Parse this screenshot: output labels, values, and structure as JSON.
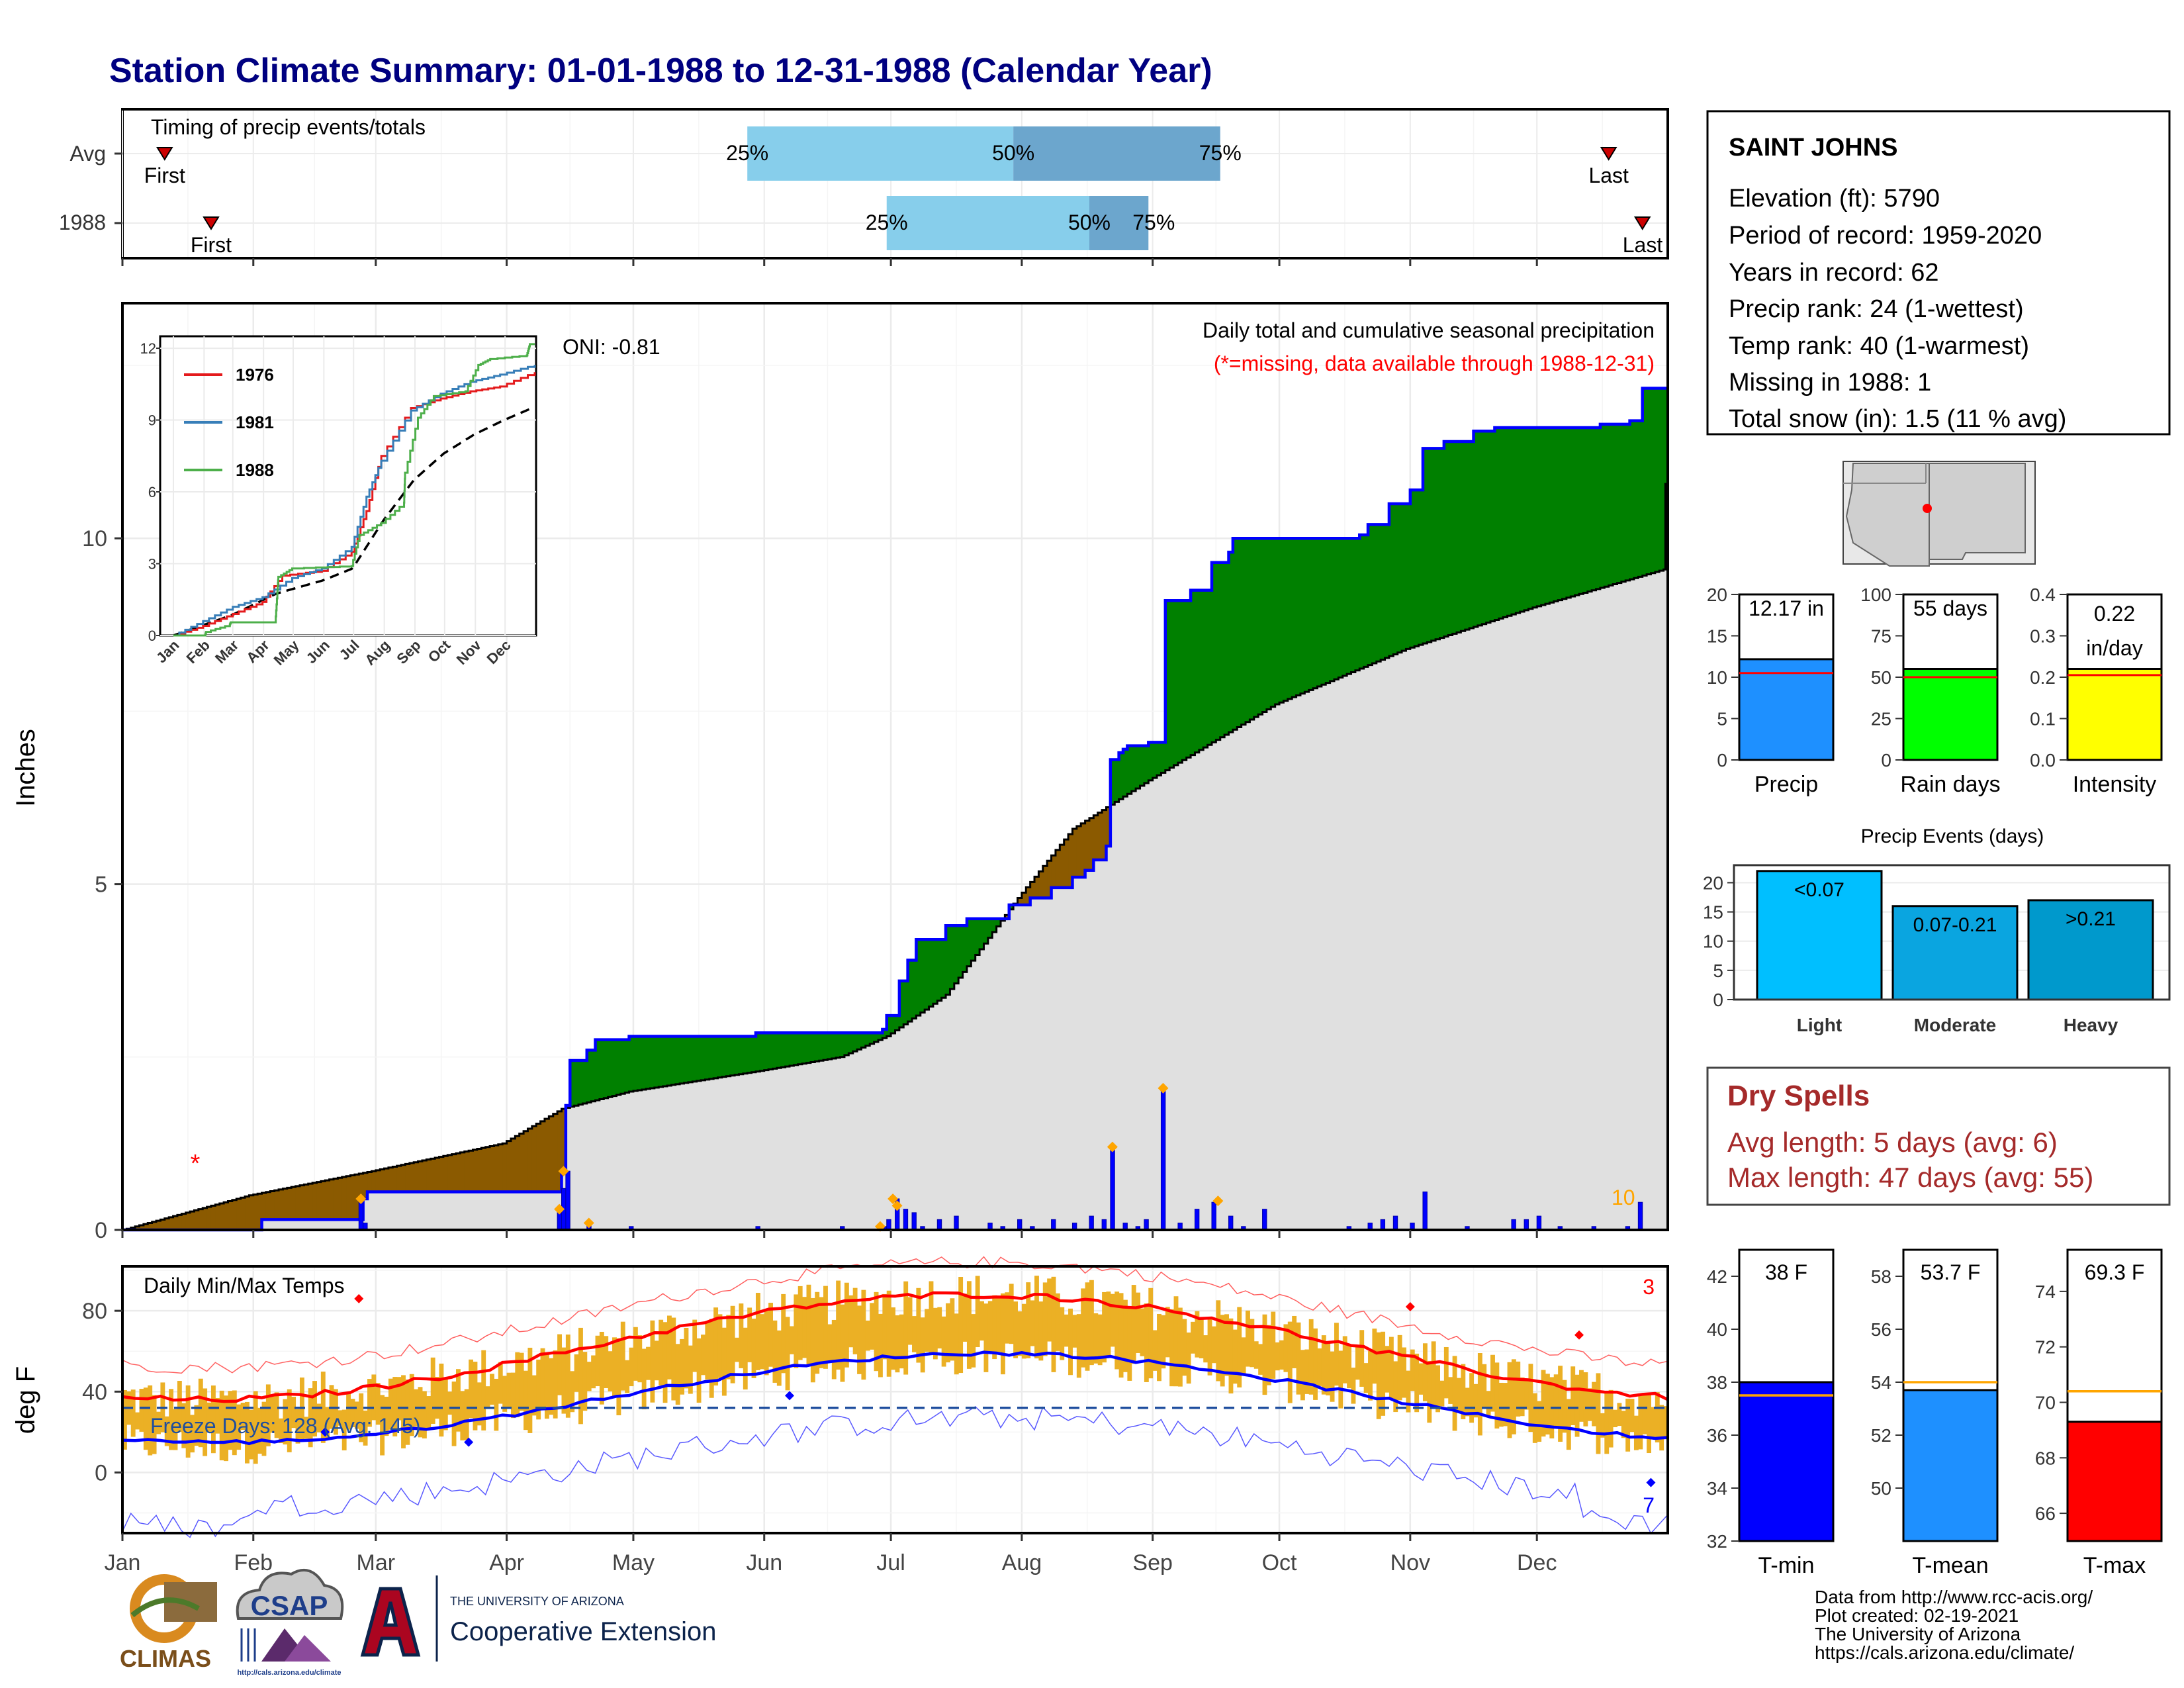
{
  "title": "Station Climate Summary: 01-01-1988 to 12-31-1988 (Calendar Year)",
  "colors": {
    "title": "#000080",
    "precip_green": "#008000",
    "precip_brown": "#8B5A00",
    "cum_gray": "#E0E0E0",
    "daily_bar": "#0000FF",
    "orange": "#FFA500",
    "tmax_red": "#FF0000",
    "tmin_blue": "#0000FF",
    "temp_bar": "#EBB025",
    "dry_spell": "#A52A2A",
    "light_blue": "#87CEEB",
    "mid_blue": "#6CA6CD"
  },
  "timing_chart": {
    "title": "Timing of precip events/totals",
    "rows": [
      {
        "label": "Avg",
        "first_label": "First",
        "last_label": "Last",
        "first_doy": 10,
        "p25_doy": 148,
        "p50_doy": 211,
        "p75_doy": 260,
        "last_doy": 352,
        "p25_label": "25%",
        "p50_label": "50%",
        "p75_label": "75%"
      },
      {
        "label": "1988",
        "first_label": "First",
        "last_label": "Last",
        "first_doy": 21,
        "p25_doy": 181,
        "p50_doy": 229,
        "p75_doy": 243,
        "last_doy": 360,
        "p25_label": "25%",
        "p50_label": "50%",
        "p75_label": "75%"
      }
    ]
  },
  "precip_chart": {
    "ylabel": "Inches",
    "title": "Daily total and cumulative seasonal precipitation",
    "missing_note": "(*=missing, data available through 1988-12-31)",
    "oni_label": "ONI: -0.81",
    "max_daily_count": "10",
    "y_ticks": [
      0,
      5,
      10
    ],
    "ylim": [
      0,
      13.4
    ],
    "months": [
      "Jan",
      "Feb",
      "Mar",
      "Apr",
      "May",
      "Jun",
      "Jul",
      "Aug",
      "Sep",
      "Oct",
      "Nov",
      "Dec"
    ],
    "cumulative_1988": [
      [
        0,
        0
      ],
      [
        32,
        0
      ],
      [
        33,
        0.15
      ],
      [
        55,
        0.15
      ],
      [
        56,
        0.15
      ],
      [
        57,
        0.45
      ],
      [
        58,
        0.55
      ],
      [
        103,
        0.55
      ],
      [
        104,
        0.85
      ],
      [
        105,
        1.8
      ],
      [
        106,
        2.45
      ],
      [
        110,
        2.6
      ],
      [
        112,
        2.75
      ],
      [
        120,
        2.8
      ],
      [
        150,
        2.85
      ],
      [
        180,
        2.9
      ],
      [
        181,
        3.1
      ],
      [
        184,
        3.6
      ],
      [
        186,
        3.9
      ],
      [
        188,
        4.2
      ],
      [
        195,
        4.4
      ],
      [
        200,
        4.5
      ],
      [
        210,
        4.7
      ],
      [
        215,
        4.8
      ],
      [
        220,
        4.95
      ],
      [
        225,
        5.1
      ],
      [
        228,
        5.2
      ],
      [
        230,
        5.35
      ],
      [
        233,
        5.55
      ],
      [
        234,
        6.8
      ],
      [
        236,
        6.9
      ],
      [
        237,
        6.95
      ],
      [
        238,
        7.0
      ],
      [
        243,
        7.05
      ],
      [
        247,
        9.1
      ],
      [
        253,
        9.25
      ],
      [
        258,
        9.65
      ],
      [
        262,
        9.8
      ],
      [
        263,
        10.0
      ],
      [
        293,
        10.05
      ],
      [
        295,
        10.2
      ],
      [
        300,
        10.5
      ],
      [
        305,
        10.7
      ],
      [
        308,
        11.3
      ],
      [
        313,
        11.4
      ],
      [
        320,
        11.55
      ],
      [
        325,
        11.6
      ],
      [
        350,
        11.65
      ],
      [
        357,
        11.7
      ],
      [
        360,
        12.17
      ],
      [
        365,
        12.17
      ]
    ],
    "cumulative_avg": [
      [
        0,
        0
      ],
      [
        30,
        0.5
      ],
      [
        59,
        0.85
      ],
      [
        90,
        1.25
      ],
      [
        104,
        1.75
      ],
      [
        120,
        2.0
      ],
      [
        151,
        2.3
      ],
      [
        170,
        2.5
      ],
      [
        181,
        2.8
      ],
      [
        195,
        3.4
      ],
      [
        212,
        4.8
      ],
      [
        225,
        5.8
      ],
      [
        243,
        6.5
      ],
      [
        273,
        7.6
      ],
      [
        304,
        8.4
      ],
      [
        334,
        9.0
      ],
      [
        365,
        9.55
      ]
    ],
    "daily_bars": [
      [
        56,
        0.45
      ],
      [
        57,
        0.1
      ],
      [
        103,
        0.3
      ],
      [
        104,
        0.6
      ],
      [
        105,
        0.85
      ],
      [
        110,
        0.1
      ],
      [
        120,
        0.05
      ],
      [
        150,
        0.05
      ],
      [
        170,
        0.05
      ],
      [
        180,
        0.05
      ],
      [
        181,
        0.15
      ],
      [
        183,
        0.45
      ],
      [
        185,
        0.3
      ],
      [
        187,
        0.25
      ],
      [
        189,
        0.05
      ],
      [
        193,
        0.15
      ],
      [
        197,
        0.2
      ],
      [
        205,
        0.1
      ],
      [
        208,
        0.05
      ],
      [
        212,
        0.15
      ],
      [
        215,
        0.05
      ],
      [
        220,
        0.15
      ],
      [
        225,
        0.1
      ],
      [
        229,
        0.2
      ],
      [
        232,
        0.15
      ],
      [
        234,
        1.2
      ],
      [
        237,
        0.1
      ],
      [
        240,
        0.05
      ],
      [
        242,
        0.15
      ],
      [
        246,
        2.05
      ],
      [
        250,
        0.1
      ],
      [
        254,
        0.3
      ],
      [
        258,
        0.4
      ],
      [
        262,
        0.2
      ],
      [
        265,
        0.05
      ],
      [
        270,
        0.3
      ],
      [
        290,
        0.05
      ],
      [
        295,
        0.1
      ],
      [
        298,
        0.15
      ],
      [
        301,
        0.2
      ],
      [
        305,
        0.1
      ],
      [
        308,
        0.55
      ],
      [
        318,
        0.05
      ],
      [
        329,
        0.15
      ],
      [
        332,
        0.15
      ],
      [
        335,
        0.2
      ],
      [
        340,
        0.05
      ],
      [
        348,
        0.05
      ],
      [
        356,
        0.05
      ],
      [
        359,
        0.4
      ]
    ],
    "orange_markers": [
      [
        56,
        0.45
      ],
      [
        103,
        0.3
      ],
      [
        104,
        0.85
      ],
      [
        110,
        0.1
      ],
      [
        179,
        0.05
      ],
      [
        182,
        0.45
      ],
      [
        183,
        0.35
      ],
      [
        234,
        1.2
      ],
      [
        246,
        2.05
      ],
      [
        259,
        0.42
      ]
    ],
    "missing_doy": 17,
    "missing_value": 1.0,
    "legend_area_label": ""
  },
  "inset_chart": {
    "y_ticks": [
      "0",
      "3",
      "6",
      "9",
      "12"
    ],
    "months": [
      "Jan",
      "Feb",
      "Mar",
      "Apr",
      "May",
      "Jun",
      "Jul",
      "Aug",
      "Sep",
      "Oct",
      "Nov",
      "Dec"
    ],
    "ylim": [
      0,
      12.5
    ],
    "series": [
      {
        "name": "1976",
        "color": "#E41A1C",
        "points": [
          [
            0,
            0
          ],
          [
            30,
            0.4
          ],
          [
            60,
            0.9
          ],
          [
            90,
            1.4
          ],
          [
            110,
            2.5
          ],
          [
            150,
            2.7
          ],
          [
            180,
            3.5
          ],
          [
            195,
            5.2
          ],
          [
            210,
            7.5
          ],
          [
            240,
            9.5
          ],
          [
            270,
            9.9
          ],
          [
            300,
            10.2
          ],
          [
            330,
            10.4
          ],
          [
            365,
            11.0
          ]
        ]
      },
      {
        "name": "1981",
        "color": "#377EB8",
        "points": [
          [
            0,
            0
          ],
          [
            30,
            0.6
          ],
          [
            60,
            1.2
          ],
          [
            90,
            1.6
          ],
          [
            120,
            2.4
          ],
          [
            150,
            2.8
          ],
          [
            180,
            3.7
          ],
          [
            195,
            5.8
          ],
          [
            210,
            7.3
          ],
          [
            240,
            9.4
          ],
          [
            270,
            10.1
          ],
          [
            300,
            10.6
          ],
          [
            330,
            10.9
          ],
          [
            365,
            11.3
          ]
        ]
      },
      {
        "name": "1988",
        "color": "#4DAF4A",
        "points": [
          [
            0,
            0
          ],
          [
            32,
            0
          ],
          [
            33,
            0.15
          ],
          [
            57,
            0.45
          ],
          [
            58,
            0.55
          ],
          [
            103,
            0.55
          ],
          [
            105,
            1.8
          ],
          [
            106,
            2.45
          ],
          [
            120,
            2.8
          ],
          [
            180,
            2.9
          ],
          [
            188,
            4.2
          ],
          [
            210,
            4.7
          ],
          [
            233,
            5.55
          ],
          [
            234,
            6.8
          ],
          [
            247,
            9.1
          ],
          [
            263,
            10.0
          ],
          [
            295,
            10.2
          ],
          [
            308,
            11.3
          ],
          [
            320,
            11.55
          ],
          [
            357,
            11.7
          ],
          [
            360,
            12.17
          ],
          [
            365,
            12.17
          ]
        ]
      }
    ],
    "avg_points": [
      [
        0,
        0
      ],
      [
        59,
        0.85
      ],
      [
        104,
        1.75
      ],
      [
        151,
        2.3
      ],
      [
        181,
        2.8
      ],
      [
        212,
        4.8
      ],
      [
        243,
        6.5
      ],
      [
        273,
        7.6
      ],
      [
        304,
        8.4
      ],
      [
        334,
        9.0
      ],
      [
        365,
        9.55
      ]
    ]
  },
  "temp_chart": {
    "ylabel": "deg F",
    "title": "Daily Min/Max Temps",
    "freeze_label": "Freeze Days: 128 (Avg: 145)",
    "record_high_count": "3",
    "record_low_count": "7",
    "y_ticks": [
      0,
      40,
      80
    ],
    "ylim": [
      -30,
      102
    ],
    "months": [
      "Jan",
      "Feb",
      "Mar",
      "Apr",
      "May",
      "Jun",
      "Jul",
      "Aug",
      "Sep",
      "Oct",
      "Nov",
      "Dec"
    ]
  },
  "station_info": {
    "name": "SAINT JOHNS",
    "lines": [
      "Elevation (ft): 5790",
      "Period of record: 1959-2020",
      "Years in record: 62",
      "Precip rank: 24 (1-wettest)",
      "Temp rank: 40 (1-warmest)",
      "Missing in 1988: 1",
      "Total snow (in): 1.5 (11 % avg)"
    ]
  },
  "summary_bars": [
    {
      "name": "Precip",
      "label": "12.17 in",
      "label2": "",
      "value": 12.17,
      "avg": 10.5,
      "ylim": [
        0,
        20
      ],
      "ticks": [
        "0",
        "5",
        "10",
        "15",
        "20"
      ],
      "color": "#1E90FF"
    },
    {
      "name": "Rain days",
      "label": "55 days",
      "label2": "",
      "value": 55,
      "avg": 50,
      "ylim": [
        0,
        100
      ],
      "ticks": [
        "0",
        "25",
        "50",
        "75",
        "100"
      ],
      "color": "#00FF00"
    },
    {
      "name": "Intensity",
      "label": "0.22",
      "label2": "in/day",
      "value": 0.22,
      "avg": 0.205,
      "ylim": [
        0,
        0.4
      ],
      "ticks": [
        "0.0",
        "0.1",
        "0.2",
        "0.3",
        "0.4"
      ],
      "color": "#FFFF00"
    }
  ],
  "precip_events": {
    "title": "Precip Events (days)",
    "ylim": [
      0,
      23
    ],
    "ticks": [
      "0",
      "5",
      "10",
      "15",
      "20"
    ],
    "bars": [
      {
        "name": "Light",
        "label": "<0.07",
        "value": 22,
        "color": "#00BFFF"
      },
      {
        "name": "Moderate",
        "label": "0.07-0.21",
        "value": 16,
        "color": "#0AA5E0"
      },
      {
        "name": "Heavy",
        "label": ">0.21",
        "value": 17,
        "color": "#0099CC"
      }
    ]
  },
  "dry_spells": {
    "title": "Dry Spells",
    "avg_line": "Avg length: 5 days (avg: 6)",
    "max_line": "Max length: 47 days (avg: 55)"
  },
  "temp_bars": [
    {
      "name": "T-min",
      "label": "38 F",
      "value": 38,
      "avg": 37.5,
      "ylim": [
        32,
        43
      ],
      "ticks": [
        "32",
        "34",
        "36",
        "38",
        "40",
        "42"
      ],
      "tick_vals": [
        32,
        34,
        36,
        38,
        40,
        42
      ],
      "color": "#0000FF"
    },
    {
      "name": "T-mean",
      "label": "53.7 F",
      "value": 53.7,
      "avg": 54.0,
      "ylim": [
        48,
        59
      ],
      "ticks": [
        "50",
        "52",
        "54",
        "56",
        "58"
      ],
      "tick_vals": [
        50,
        52,
        54,
        56,
        58
      ],
      "color": "#1E90FF"
    },
    {
      "name": "T-max",
      "label": "69.3 F",
      "value": 69.3,
      "avg": 70.4,
      "ylim": [
        65,
        75.5
      ],
      "ticks": [
        "66",
        "68",
        "70",
        "72",
        "74"
      ],
      "tick_vals": [
        66,
        68,
        70,
        72,
        74
      ],
      "color": "#FF0000"
    }
  ],
  "footer": {
    "lines": [
      "Data from http://www.rcc-acis.org/",
      "Plot created: 02-19-2021",
      "The University of Arizona",
      "https://cals.arizona.edu/climate/"
    ],
    "climas_label": "CLIMAS",
    "csap_label": "CSAP",
    "csap_url": "http://cals.arizona.edu/climate",
    "ua_small": "THE UNIVERSITY OF ARIZONA",
    "ua_large": "Cooperative Extension"
  }
}
